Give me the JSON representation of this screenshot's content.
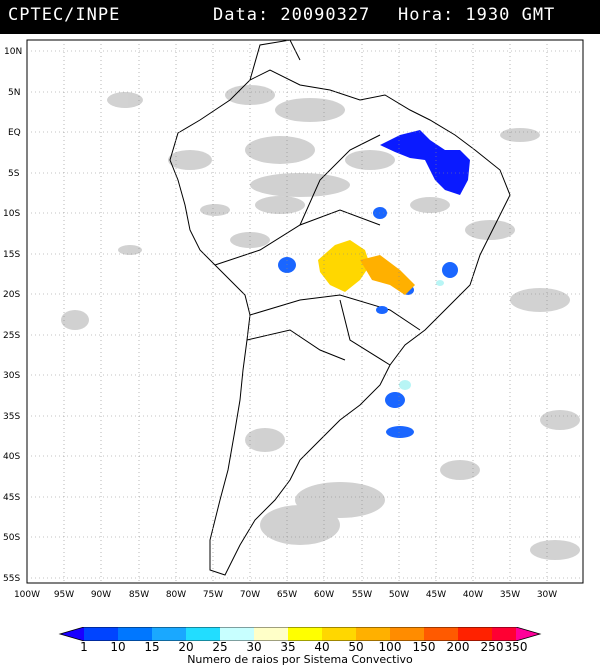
{
  "header": {
    "agency": "CPTEC/INPE",
    "date_text": "Data: 20090327",
    "time_text": "Hora: 1930 GMT"
  },
  "map": {
    "lat_labels": [
      "10N",
      "5N",
      "EQ",
      "5S",
      "10S",
      "15S",
      "20S",
      "25S",
      "30S",
      "35S",
      "40S",
      "45S",
      "50S",
      "55S"
    ],
    "lon_labels": [
      "100W",
      "95W",
      "90W",
      "85W",
      "80W",
      "75W",
      "70W",
      "65W",
      "60W",
      "55W",
      "50W",
      "45W",
      "40W",
      "35W",
      "30W"
    ],
    "colors": {
      "cloud": "#c8c8c8",
      "dense_blue": "#0a1aff",
      "mid_blue": "#1a66ff",
      "light_cyan": "#b8f5f5",
      "yellow": "#ffd700",
      "orange": "#ffb000"
    }
  },
  "legend": {
    "labels": [
      "1",
      "10",
      "15",
      "20",
      "25",
      "30",
      "35",
      "40",
      "50",
      "100",
      "150",
      "200",
      "250",
      "350"
    ],
    "colors": [
      "#1a00ff",
      "#0044ff",
      "#0077ff",
      "#1aa8ff",
      "#22ddff",
      "#c8ffff",
      "#ffffc8",
      "#ffff00",
      "#ffd700",
      "#ffb000",
      "#ff8c00",
      "#ff5a00",
      "#ff2200",
      "#ff0033",
      "#ff0099"
    ],
    "title": "Numero de raios por Sistema Convectivo"
  }
}
